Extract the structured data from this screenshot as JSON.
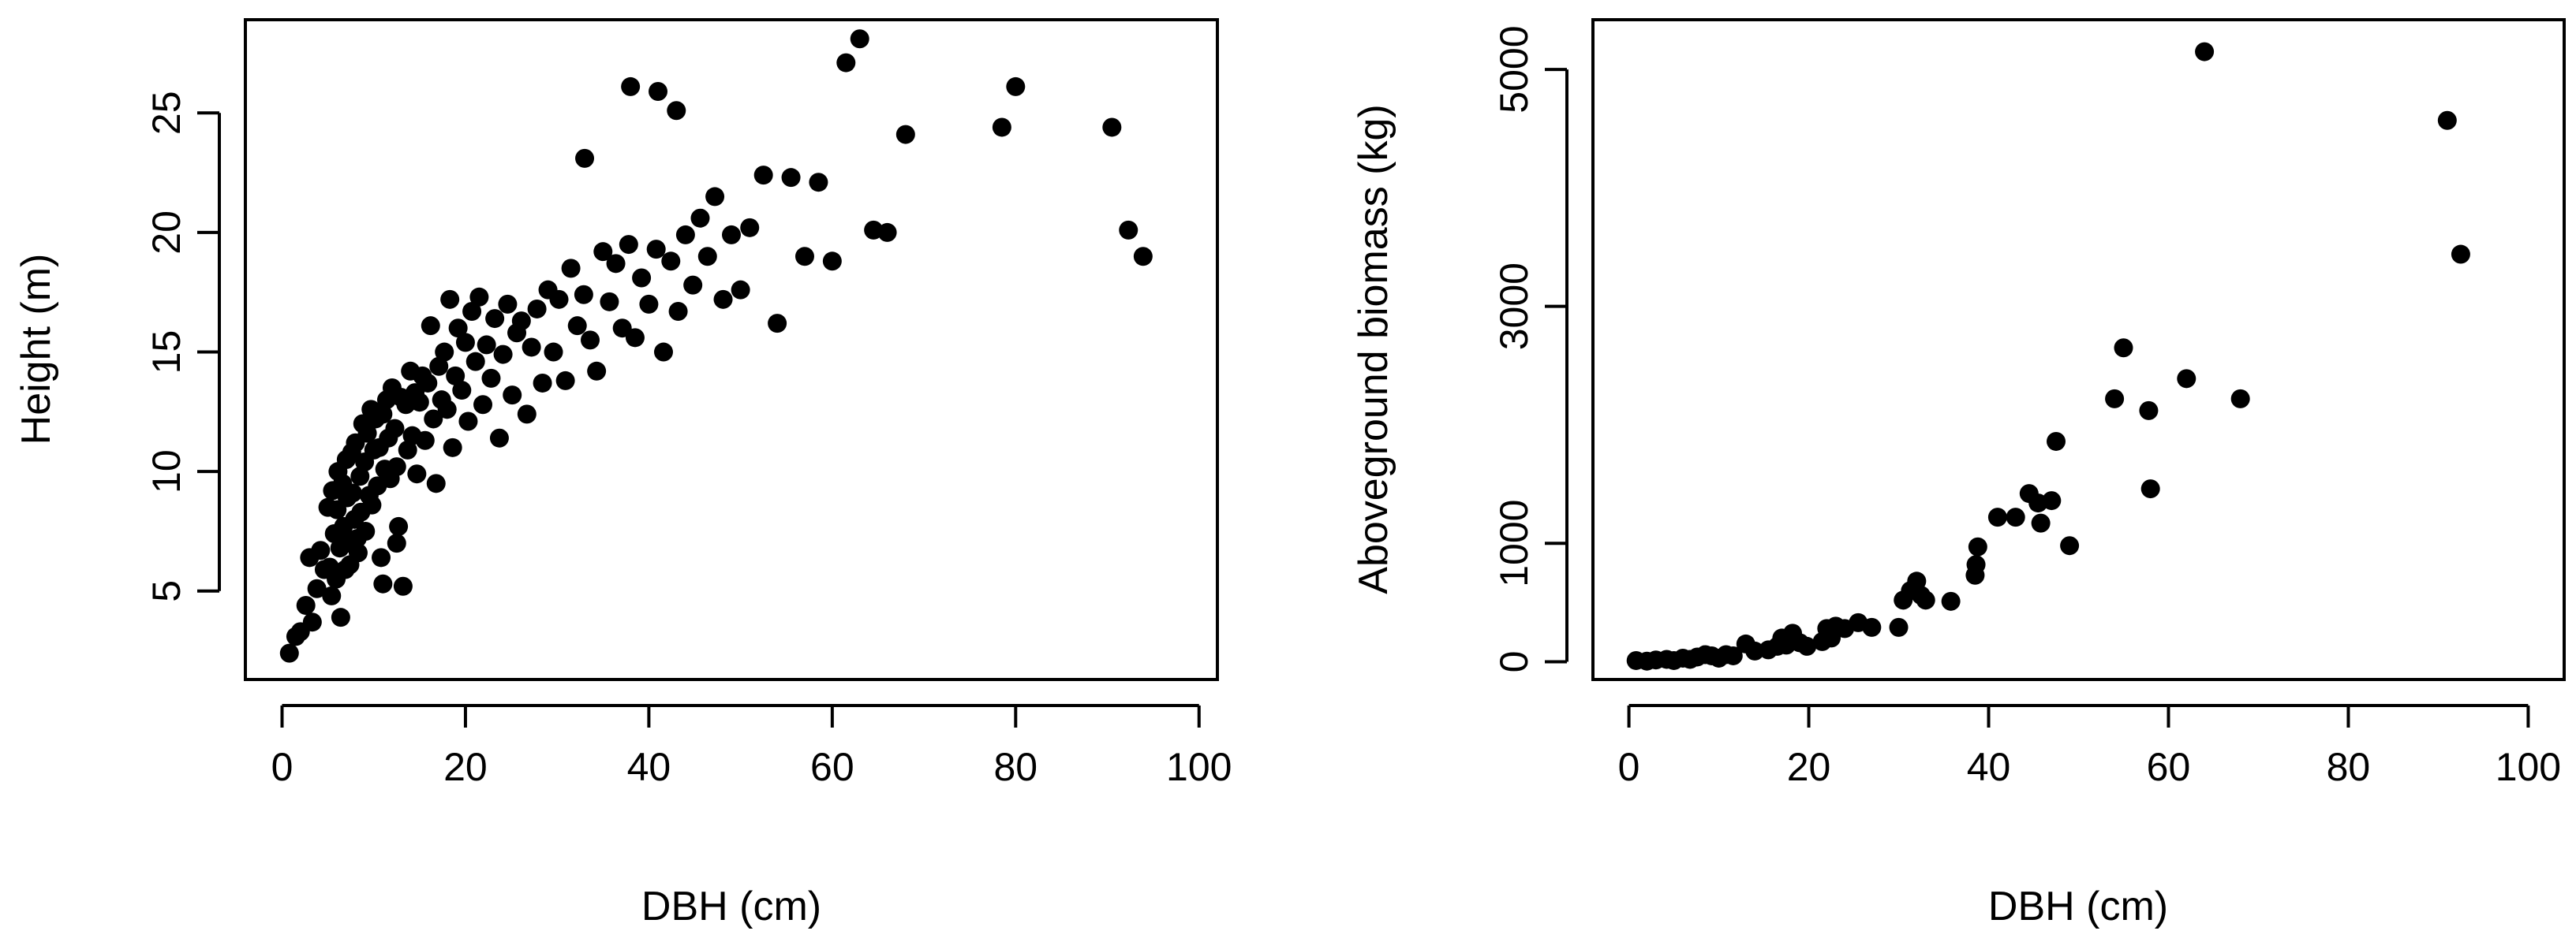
{
  "colors": {
    "point": "#000000",
    "axis": "#000000",
    "background": "#ffffff"
  },
  "chart_data": [
    {
      "type": "scatter",
      "xlabel": "DBH (cm)",
      "ylabel": "Height (m)",
      "xlim": [
        -4,
        102
      ],
      "ylim": [
        1.3,
        28.9
      ],
      "xticks": [
        0,
        20,
        40,
        60,
        80,
        100
      ],
      "yticks": [
        5,
        10,
        15,
        20,
        25
      ],
      "grid": false,
      "legend": "none",
      "series": [
        {
          "x": [
            0.8,
            1.5,
            2.0,
            2.6,
            3.0,
            3.3,
            3.8,
            4.2,
            4.6,
            5.0,
            5.2,
            5.4,
            5.5,
            5.7,
            5.9,
            6.0,
            6.1,
            6.3,
            6.4,
            6.6,
            6.7,
            6.9,
            7.0,
            7.1,
            7.3,
            7.4,
            7.6,
            7.7,
            7.9,
            8.0,
            8.2,
            8.3,
            8.5,
            8.6,
            8.8,
            9.0,
            9.1,
            9.3,
            9.5,
            9.7,
            9.8,
            10.0,
            10.2,
            10.4,
            10.6,
            10.8,
            11.0,
            11.2,
            11.4,
            11.6,
            11.8,
            12.0,
            12.3,
            12.5,
            12.7,
            13.0,
            13.2,
            13.5,
            13.7,
            14.0,
            14.2,
            14.5,
            14.7,
            15.0,
            15.3,
            15.6,
            15.9,
            16.2,
            16.5,
            16.8,
            17.1,
            17.4,
            17.7,
            18.0,
            18.3,
            18.6,
            18.9,
            19.2,
            19.6,
            20.0,
            20.3,
            20.7,
            21.1,
            21.5,
            21.9,
            22.3,
            22.8,
            23.2,
            23.7,
            24.1,
            24.6,
            25.1,
            25.6,
            26.1,
            26.7,
            27.2,
            27.8,
            28.4,
            29.0,
            29.6,
            30.2,
            30.9,
            31.5,
            32.2,
            32.9,
            33.6,
            34.3,
            35.0,
            35.7,
            36.4,
            37.1,
            37.8,
            38.5,
            39.2,
            40.0,
            40.8,
            41.6,
            42.4,
            43.2,
            44.0,
            44.8,
            45.6,
            46.4,
            47.2,
            48.1,
            49.0,
            50.0,
            51.0,
            52.5,
            54.0,
            55.5,
            57.0,
            58.5,
            60.0,
            61.5,
            63.0,
            64.5,
            66.0,
            68.0,
            78.5,
            80.0,
            90.5,
            92.3,
            93.9,
            11.0,
            12.5,
            33.0,
            38.0,
            41.0,
            43.0
          ],
          "y": [
            2.4,
            3.1,
            3.3,
            4.4,
            6.4,
            3.7,
            5.1,
            6.7,
            5.9,
            8.5,
            6.0,
            4.8,
            9.2,
            7.4,
            5.5,
            8.4,
            10.0,
            6.8,
            3.9,
            9.5,
            7.7,
            5.9,
            10.5,
            8.9,
            7.0,
            6.1,
            10.8,
            9.1,
            8.0,
            11.2,
            7.2,
            6.6,
            9.8,
            8.3,
            12.0,
            10.4,
            7.5,
            11.6,
            9.0,
            12.6,
            8.6,
            10.9,
            12.2,
            9.4,
            11.0,
            6.4,
            12.4,
            10.1,
            13.0,
            11.4,
            9.7,
            13.5,
            11.8,
            10.2,
            7.7,
            13.1,
            5.2,
            12.8,
            10.9,
            14.2,
            11.5,
            13.3,
            9.9,
            12.9,
            14.0,
            11.3,
            13.7,
            16.1,
            12.2,
            9.5,
            14.4,
            13.0,
            15.0,
            12.6,
            17.2,
            11.0,
            14.0,
            16.0,
            13.4,
            15.4,
            12.1,
            16.7,
            14.6,
            17.3,
            12.8,
            15.3,
            13.9,
            16.4,
            11.4,
            14.9,
            17.0,
            13.2,
            15.8,
            16.3,
            12.4,
            15.2,
            16.8,
            13.7,
            17.6,
            15.0,
            17.2,
            13.8,
            18.5,
            16.1,
            17.4,
            15.5,
            14.2,
            19.2,
            17.1,
            18.7,
            16.0,
            19.5,
            15.6,
            18.1,
            17.0,
            19.3,
            15.0,
            18.8,
            16.7,
            19.9,
            17.8,
            20.6,
            19.0,
            21.5,
            17.2,
            19.9,
            17.6,
            20.2,
            22.4,
            16.2,
            22.3,
            19.0,
            22.1,
            18.8,
            27.1,
            28.1,
            20.1,
            20.0,
            24.1,
            24.4,
            26.1,
            24.4,
            20.1,
            19.0,
            5.3,
            7.0,
            23.1,
            26.1,
            25.9,
            25.1
          ]
        }
      ]
    },
    {
      "type": "scatter",
      "xlabel": "DBH (cm)",
      "ylabel": "Aboveground biomass (kg)",
      "xlim": [
        -4,
        104
      ],
      "ylim": [
        -150,
        5420
      ],
      "xticks": [
        0,
        20,
        40,
        60,
        80,
        100
      ],
      "yticks": [
        0,
        1000,
        3000,
        5000
      ],
      "grid": false,
      "legend": "none",
      "series": [
        {
          "x": [
            0.8,
            2.0,
            3.0,
            4.2,
            5.0,
            6.0,
            6.8,
            7.6,
            8.5,
            9.2,
            10.0,
            10.8,
            11.6,
            13.0,
            14.0,
            15.5,
            16.5,
            17.0,
            17.5,
            18.2,
            19.0,
            19.8,
            21.5,
            22.0,
            22.5,
            23.0,
            24.0,
            25.5,
            27.0,
            30.0,
            30.5,
            31.3,
            32.0,
            32.5,
            33.0,
            35.8,
            38.5,
            38.6,
            38.8,
            41.0,
            43.0,
            44.5,
            45.5,
            45.8,
            47.0,
            47.5,
            49.0,
            54.0,
            55.0,
            57.8,
            58.0,
            62.0,
            64.0,
            68.0,
            91.0,
            92.5
          ],
          "y": [
            10,
            5,
            15,
            20,
            10,
            30,
            20,
            40,
            60,
            50,
            30,
            60,
            50,
            150,
            90,
            100,
            130,
            200,
            140,
            240,
            160,
            130,
            170,
            280,
            200,
            300,
            280,
            330,
            290,
            290,
            520,
            600,
            680,
            560,
            520,
            510,
            730,
            820,
            970,
            1220,
            1220,
            1420,
            1340,
            1170,
            1360,
            1860,
            980,
            2220,
            2650,
            2120,
            1460,
            2390,
            5150,
            2220,
            4570,
            3440
          ]
        }
      ]
    }
  ]
}
